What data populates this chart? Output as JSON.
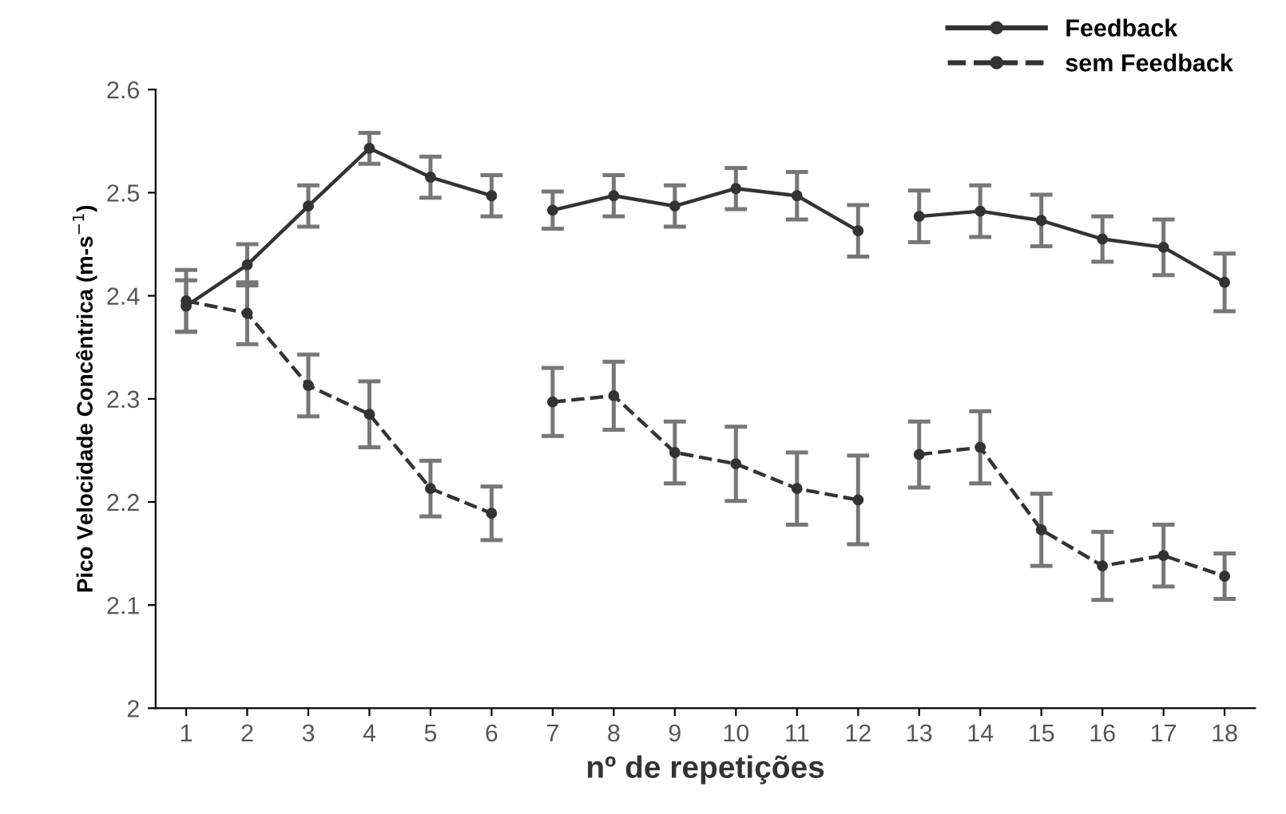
{
  "chart_data": {
    "type": "line",
    "xlabel": "nº de repetições",
    "ylabel": "Pico Velocidade Concêntrica (m-s$^{−1}$)",
    "categories": [
      "1",
      "2",
      "3",
      "4",
      "5",
      "6",
      "7",
      "8",
      "9",
      "10",
      "11",
      "12",
      "13",
      "14",
      "15",
      "16",
      "17",
      "18"
    ],
    "ylim": [
      2,
      2.6
    ],
    "yticks": [
      2,
      2.1,
      2.2,
      2.3,
      2.4,
      2.5,
      2.6
    ],
    "grid": false,
    "legend": "top right",
    "marker": "circle",
    "series": [
      {
        "name": "Feedback",
        "color": "#333333",
        "line_style": "solid",
        "values": [
          2.39,
          2.43,
          2.487,
          2.543,
          2.515,
          2.497,
          null,
          null,
          null,
          null,
          null,
          null,
          null,
          null,
          null,
          null,
          null,
          null
        ],
        "errors": [
          0.025,
          0.02,
          0.02,
          0.015,
          0.02,
          0.02,
          null,
          null,
          null,
          null,
          null,
          null,
          null,
          null,
          null,
          null,
          null,
          null
        ]
      },
      {
        "color": "#333333",
        "line_style": "solid",
        "values": [
          null,
          null,
          null,
          null,
          null,
          null,
          2.483,
          2.497,
          2.487,
          2.504,
          2.497,
          2.463,
          null,
          null,
          null,
          null,
          null,
          null
        ],
        "errors": [
          null,
          null,
          null,
          null,
          null,
          null,
          0.018,
          0.02,
          0.02,
          0.02,
          0.023,
          0.025,
          null,
          null,
          null,
          null,
          null,
          null
        ]
      },
      {
        "color": "#333333",
        "line_style": "solid",
        "values": [
          null,
          null,
          null,
          null,
          null,
          null,
          null,
          null,
          null,
          null,
          null,
          null,
          2.477,
          2.482,
          2.473,
          2.455,
          2.447,
          2.413
        ],
        "errors": [
          null,
          null,
          null,
          null,
          null,
          null,
          null,
          null,
          null,
          null,
          null,
          null,
          0.025,
          0.025,
          0.025,
          0.022,
          0.027,
          0.028
        ]
      },
      {
        "name": "sem Feedback",
        "color": "#333333",
        "line_style": "dashed",
        "values": [
          2.395,
          2.383,
          2.313,
          2.285,
          2.213,
          2.189,
          null,
          null,
          null,
          null,
          null,
          null,
          null,
          null,
          null,
          null,
          null,
          null
        ],
        "errors": [
          0.03,
          0.03,
          0.03,
          0.032,
          0.027,
          0.026,
          null,
          null,
          null,
          null,
          null,
          null,
          null,
          null,
          null,
          null,
          null,
          null
        ]
      },
      {
        "color": "#333333",
        "line_style": "dashed",
        "values": [
          null,
          null,
          null,
          null,
          null,
          null,
          2.297,
          2.303,
          2.248,
          2.237,
          2.213,
          2.202,
          null,
          null,
          null,
          null,
          null,
          null
        ],
        "errors": [
          null,
          null,
          null,
          null,
          null,
          null,
          0.033,
          0.033,
          0.03,
          0.036,
          0.035,
          0.043,
          null,
          null,
          null,
          null,
          null,
          null
        ]
      },
      {
        "color": "#333333",
        "line_style": "dashed",
        "values": [
          null,
          null,
          null,
          null,
          null,
          null,
          null,
          null,
          null,
          null,
          null,
          null,
          2.246,
          2.253,
          2.173,
          2.138,
          2.148,
          2.128
        ],
        "errors": [
          null,
          null,
          null,
          null,
          null,
          null,
          null,
          null,
          null,
          null,
          null,
          null,
          0.032,
          0.035,
          0.035,
          0.033,
          0.03,
          0.022
        ]
      }
    ]
  }
}
